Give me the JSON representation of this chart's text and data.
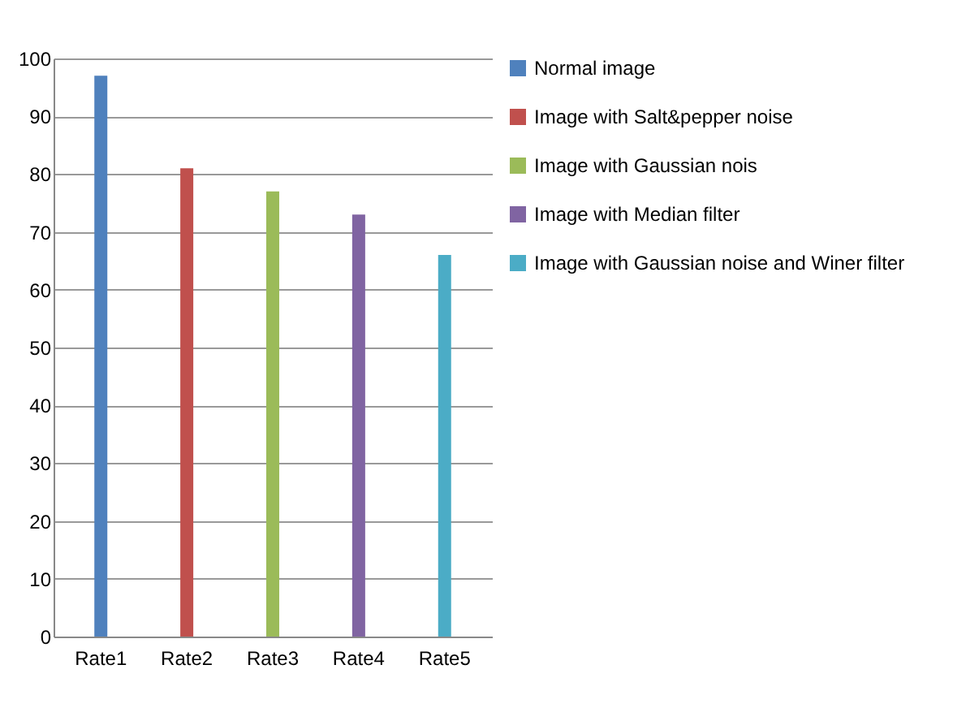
{
  "chart_data": {
    "type": "bar",
    "categories": [
      "Rate1",
      "Rate2",
      "Rate3",
      "Rate4",
      "Rate5"
    ],
    "series": [
      {
        "name": "Normal image",
        "color": "#4f81bd",
        "values": [
          97,
          null,
          null,
          null,
          null
        ]
      },
      {
        "name": "Image with Salt&pepper noise",
        "color": "#c0504d",
        "values": [
          null,
          81,
          null,
          null,
          null
        ]
      },
      {
        "name": "Image with Gaussian nois",
        "color": "#9bbb59",
        "values": [
          null,
          null,
          77,
          null,
          null
        ]
      },
      {
        "name": "Image with Median filter",
        "color": "#8064a2",
        "values": [
          null,
          null,
          null,
          73,
          null
        ]
      },
      {
        "name": "Image with Gaussian noise and Winer filter",
        "color": "#4bacc6",
        "values": [
          null,
          null,
          null,
          null,
          66
        ]
      }
    ],
    "ylim": [
      0,
      100
    ],
    "yticks": [
      0,
      10,
      20,
      30,
      40,
      50,
      60,
      70,
      80,
      90,
      100
    ],
    "grid": "y",
    "legend": "right"
  }
}
